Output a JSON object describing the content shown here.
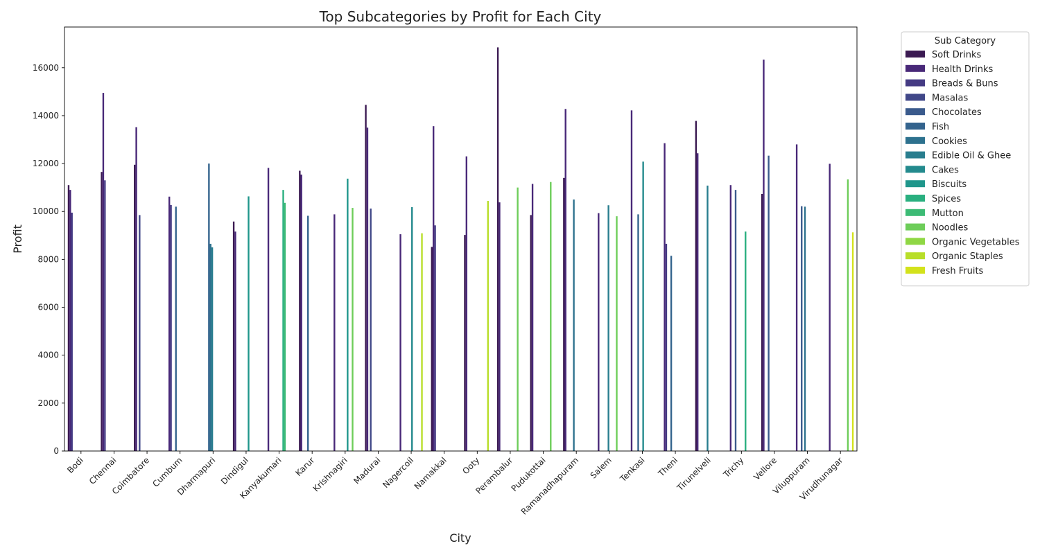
{
  "chart_data": {
    "type": "bar",
    "title": "Top Subcategories by Profit for Each City",
    "xlabel": "City",
    "ylabel": "Profit",
    "ylim": [
      0,
      17700
    ],
    "yticks": [
      0,
      2000,
      4000,
      6000,
      8000,
      10000,
      12000,
      14000,
      16000
    ],
    "grid": false,
    "legend": {
      "title": "Sub Category",
      "placement": "outside-top-right"
    },
    "categories": [
      "Bodi",
      "Chennai",
      "Coimbatore",
      "Cumbum",
      "Dharmapuri",
      "Dindigul",
      "Kanyakumari",
      "Karur",
      "Krishnagiri",
      "Madurai",
      "Nagercoil",
      "Namakkal",
      "Ooty",
      "Perambalur",
      "Pudukottai",
      "Ramanadhapuram",
      "Salem",
      "Tenkasi",
      "Theni",
      "Tirunelveli",
      "Trichy",
      "Vellore",
      "Viluppuram",
      "Virudhunagar"
    ],
    "series": [
      {
        "name": "Soft Drinks",
        "color": "#3b1a52",
        "values": [
          11100,
          11650,
          11950,
          null,
          null,
          9580,
          null,
          11700,
          null,
          14450,
          null,
          8520,
          9020,
          16850,
          9850,
          11400,
          null,
          null,
          null,
          13780,
          null,
          10730,
          null,
          null
        ]
      },
      {
        "name": "Health Drinks",
        "color": "#482878",
        "values": [
          10900,
          14950,
          13520,
          10620,
          null,
          9160,
          11820,
          11540,
          9880,
          13500,
          9050,
          13560,
          12300,
          10380,
          11150,
          14280,
          9930,
          14220,
          12850,
          12430,
          11100,
          16340,
          12800,
          11990
        ]
      },
      {
        "name": "Breads & Buns",
        "color": "#443a83",
        "values": [
          9950,
          11300,
          null,
          10270,
          null,
          null,
          null,
          null,
          null,
          null,
          null,
          9420,
          null,
          null,
          null,
          null,
          null,
          null,
          8650,
          null,
          null,
          null,
          null,
          null
        ]
      },
      {
        "name": "Masalas",
        "color": "#404788",
        "values": [
          null,
          null,
          9850,
          null,
          null,
          null,
          null,
          null,
          null,
          10120,
          null,
          null,
          null,
          null,
          null,
          null,
          null,
          null,
          null,
          null,
          null,
          null,
          null,
          null
        ]
      },
      {
        "name": "Chocolates",
        "color": "#3a5a8c",
        "values": [
          null,
          null,
          null,
          null,
          null,
          null,
          null,
          null,
          null,
          null,
          null,
          null,
          null,
          null,
          null,
          null,
          null,
          null,
          null,
          null,
          10900,
          12330,
          10220,
          null
        ]
      },
      {
        "name": "Fish",
        "color": "#33638d",
        "values": [
          null,
          null,
          null,
          10200,
          12000,
          null,
          null,
          9820,
          null,
          null,
          null,
          null,
          null,
          null,
          null,
          null,
          null,
          9880,
          8150,
          null,
          null,
          null,
          null,
          null
        ]
      },
      {
        "name": "Cookies",
        "color": "#2d718e",
        "values": [
          null,
          null,
          null,
          null,
          8650,
          null,
          null,
          null,
          null,
          null,
          null,
          null,
          null,
          null,
          null,
          10500,
          null,
          null,
          null,
          null,
          null,
          null,
          10200,
          null
        ]
      },
      {
        "name": "Edible Oil & Ghee",
        "color": "#287d8e",
        "values": [
          null,
          null,
          null,
          null,
          8500,
          null,
          null,
          null,
          null,
          null,
          null,
          null,
          null,
          null,
          null,
          null,
          10260,
          null,
          null,
          11080,
          null,
          null,
          null,
          null
        ]
      },
      {
        "name": "Cakes",
        "color": "#238a8d",
        "values": [
          null,
          null,
          null,
          null,
          null,
          null,
          null,
          null,
          null,
          null,
          10180,
          null,
          null,
          null,
          null,
          null,
          null,
          12080,
          null,
          null,
          null,
          null,
          null,
          null
        ]
      },
      {
        "name": "Biscuits",
        "color": "#1f968b",
        "values": [
          null,
          null,
          null,
          null,
          null,
          10630,
          null,
          null,
          11370,
          null,
          null,
          null,
          null,
          null,
          null,
          null,
          null,
          null,
          null,
          null,
          null,
          null,
          null,
          null
        ]
      },
      {
        "name": "Spices",
        "color": "#29af7f",
        "values": [
          null,
          null,
          null,
          null,
          null,
          null,
          10900,
          null,
          null,
          null,
          null,
          null,
          null,
          null,
          null,
          null,
          null,
          null,
          null,
          null,
          9160,
          null,
          null,
          null
        ]
      },
      {
        "name": "Mutton",
        "color": "#3cbb75",
        "values": [
          null,
          null,
          null,
          null,
          null,
          null,
          10360,
          null,
          null,
          null,
          null,
          null,
          null,
          null,
          null,
          null,
          null,
          null,
          null,
          null,
          null,
          null,
          null,
          null
        ]
      },
      {
        "name": "Noodles",
        "color": "#6dcd59",
        "values": [
          null,
          null,
          null,
          null,
          null,
          null,
          null,
          null,
          10150,
          null,
          null,
          null,
          null,
          11000,
          11230,
          null,
          9800,
          null,
          null,
          null,
          null,
          null,
          null,
          11340
        ]
      },
      {
        "name": "Organic Vegetables",
        "color": "#8fd744",
        "values": [
          null,
          null,
          null,
          null,
          null,
          null,
          null,
          null,
          null,
          null,
          null,
          null,
          null,
          null,
          null,
          null,
          null,
          null,
          null,
          null,
          null,
          null,
          null,
          null
        ]
      },
      {
        "name": "Organic Staples",
        "color": "#b8de29",
        "values": [
          null,
          null,
          null,
          null,
          null,
          null,
          null,
          null,
          null,
          null,
          9090,
          null,
          10440,
          null,
          null,
          null,
          null,
          null,
          null,
          null,
          null,
          null,
          null,
          null
        ]
      },
      {
        "name": "Fresh Fruits",
        "color": "#d3e21b",
        "values": [
          null,
          null,
          null,
          null,
          null,
          null,
          null,
          null,
          null,
          null,
          null,
          null,
          null,
          null,
          null,
          null,
          null,
          null,
          null,
          null,
          null,
          null,
          null,
          9130
        ]
      }
    ]
  }
}
